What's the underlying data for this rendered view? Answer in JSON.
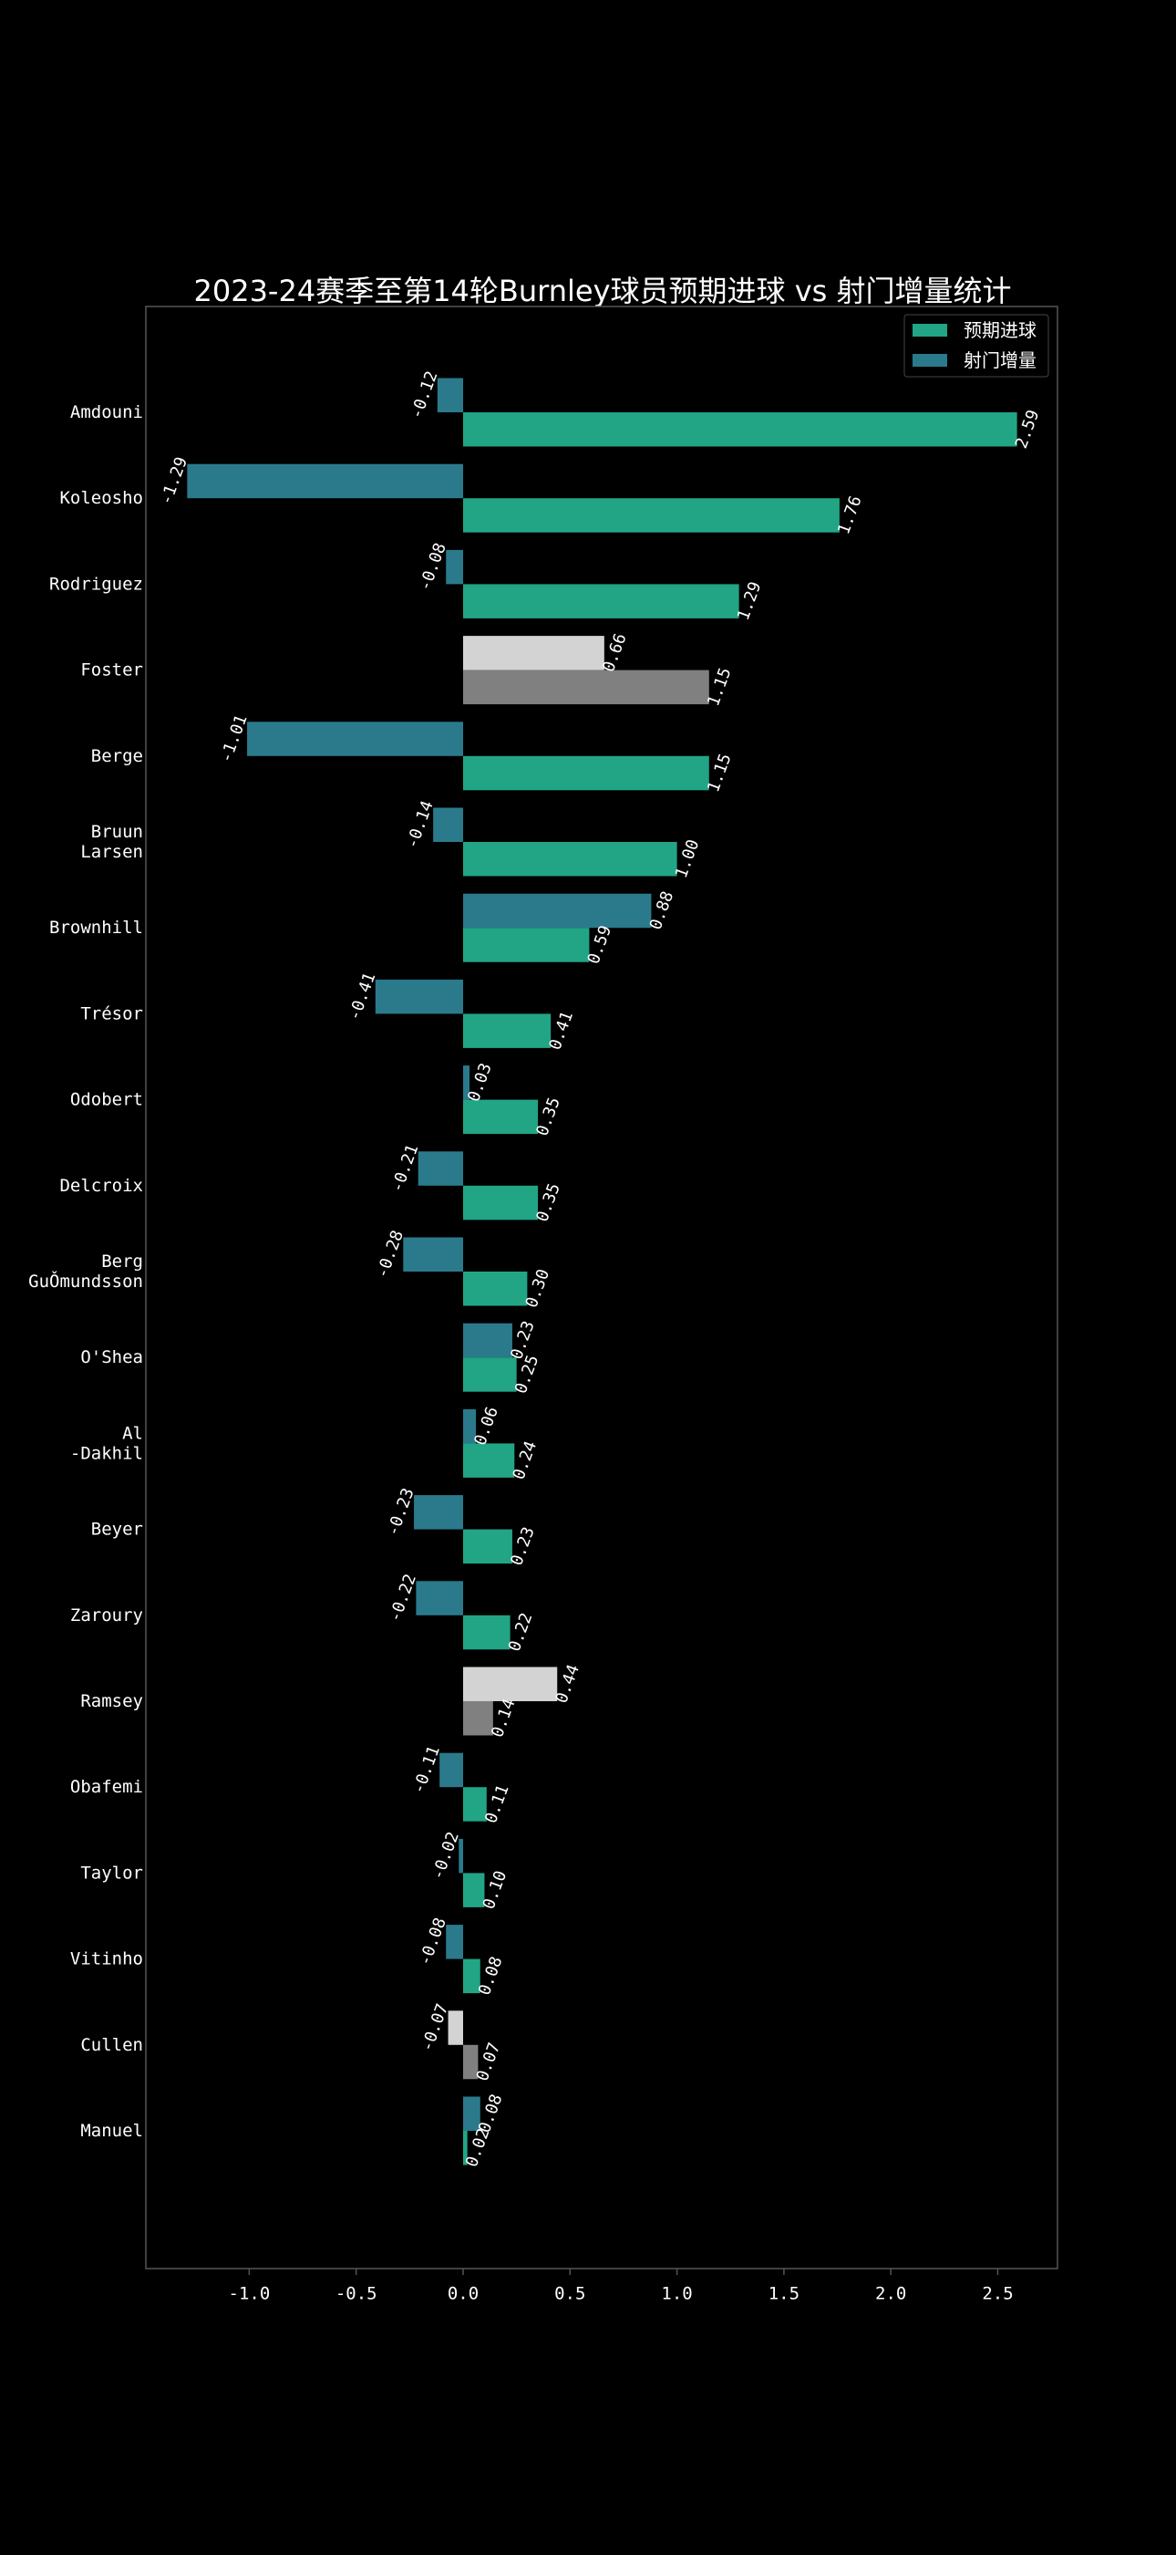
{
  "chart_data": {
    "type": "bar",
    "orientation": "horizontal",
    "title": "2023-24赛季至第14轮Burnley球员预期进球 vs 射门增量统计",
    "xlabel": "",
    "ylabel": "",
    "xlim": [
      -1.5,
      2.8
    ],
    "x_ticks": [
      "-1.0",
      "-0.5",
      "0.0",
      "0.5",
      "1.0",
      "1.5",
      "2.0",
      "2.5"
    ],
    "x_tick_values": [
      -1.0,
      -0.5,
      0.0,
      0.5,
      1.0,
      1.5,
      2.0,
      2.5
    ],
    "grid": false,
    "legend_position": "top-right",
    "categories": [
      [
        "Amdouni"
      ],
      [
        "Koleosho"
      ],
      [
        "Rodriguez"
      ],
      [
        "Foster"
      ],
      [
        "Berge"
      ],
      [
        "Bruun",
        "Larsen"
      ],
      [
        "Brownhill"
      ],
      [
        "Trésor"
      ],
      [
        "Odobert"
      ],
      [
        "Delcroix"
      ],
      [
        "Berg",
        "GuǑmundsson"
      ],
      [
        "O'Shea"
      ],
      [
        "Al",
        "-Dakhil"
      ],
      [
        "Beyer"
      ],
      [
        "Zaroury"
      ],
      [
        "Ramsey"
      ],
      [
        "Obafemi"
      ],
      [
        "Taylor"
      ],
      [
        "Vitinho"
      ],
      [
        "Cullen"
      ],
      [
        "Manuel"
      ]
    ],
    "series": [
      {
        "name": "预期进球",
        "color": "#21a585",
        "values": [
          2.59,
          1.76,
          1.29,
          1.15,
          1.15,
          1.0,
          0.59,
          0.41,
          0.35,
          0.35,
          0.3,
          0.25,
          0.24,
          0.23,
          0.22,
          0.14,
          0.11,
          0.1,
          0.08,
          0.07,
          0.02
        ],
        "labels": [
          "2.59",
          "1.76",
          "1.29",
          "1.15",
          "1.15",
          "1.00",
          "0.59",
          "0.41",
          "0.35",
          "0.35",
          "0.30",
          "0.25",
          "0.24",
          "0.23",
          "0.22",
          "0.14",
          "0.11",
          "0.10",
          "0.08",
          "0.07",
          "0.02"
        ]
      },
      {
        "name": "射门增量",
        "color": "#2a7a8c",
        "values": [
          -0.12,
          -1.29,
          -0.08,
          0.66,
          -1.01,
          -0.14,
          0.88,
          -0.41,
          0.03,
          -0.21,
          -0.28,
          0.23,
          0.06,
          -0.23,
          -0.22,
          0.44,
          -0.11,
          -0.02,
          -0.08,
          -0.07,
          0.08
        ],
        "labels": [
          "-0.12",
          "-1.29",
          "-0.08",
          "0.66",
          "-1.01",
          "-0.14",
          "0.88",
          "-0.41",
          "0.03",
          "-0.21",
          "-0.28",
          "0.23",
          "0.06",
          "-0.23",
          "-0.22",
          "0.44",
          "-0.11",
          "-0.02",
          "-0.08",
          "-0.07",
          "0.08"
        ]
      }
    ],
    "highlighted_categories": [
      "Foster",
      "Ramsey",
      "Cullen"
    ],
    "highlight_colors": {
      "预期进球": "#808080",
      "射门增量": "#d3d3d3"
    }
  },
  "colors": {
    "background": "#000000",
    "axes_edge": "#555555",
    "text": "#ffffff"
  }
}
